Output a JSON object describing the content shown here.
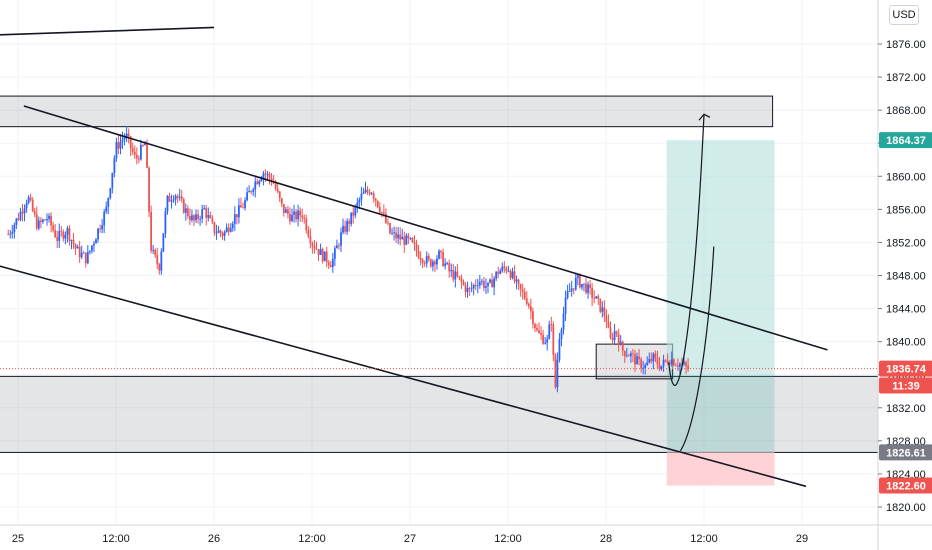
{
  "currency": "USD",
  "chart_data": {
    "type": "candlestick",
    "title": "",
    "xlabel": "",
    "ylabel": "",
    "ylim": [
      1818,
      1878
    ],
    "y_ticks": [
      "1876.00",
      "1872.00",
      "1868.00",
      "1864.00",
      "1860.00",
      "1856.00",
      "1852.00",
      "1848.00",
      "1844.00",
      "1840.00",
      "1836.00",
      "1832.00",
      "1828.00",
      "1824.00",
      "1820.00"
    ],
    "x_ticks": [
      {
        "label": "25",
        "t": 0
      },
      {
        "label": "12:00",
        "t": 0.5
      },
      {
        "label": "26",
        "t": 1
      },
      {
        "label": "12:00",
        "t": 1.5
      },
      {
        "label": "27",
        "t": 2
      },
      {
        "label": "12:00",
        "t": 2.5
      },
      {
        "label": "28",
        "t": 3
      },
      {
        "label": "12:00",
        "t": 3.5
      },
      {
        "label": "29",
        "t": 4
      }
    ],
    "price_path": [
      [
        -0.05,
        1853.0
      ],
      [
        0.0,
        1855.0
      ],
      [
        0.05,
        1857.5
      ],
      [
        0.1,
        1854.0
      ],
      [
        0.15,
        1855.0
      ],
      [
        0.2,
        1852.5
      ],
      [
        0.25,
        1853.5
      ],
      [
        0.3,
        1851.0
      ],
      [
        0.35,
        1850.0
      ],
      [
        0.4,
        1853.0
      ],
      [
        0.45,
        1856.0
      ],
      [
        0.5,
        1863.5
      ],
      [
        0.55,
        1865.0
      ],
      [
        0.6,
        1862.0
      ],
      [
        0.65,
        1864.0
      ],
      [
        0.68,
        1851.0
      ],
      [
        0.72,
        1849.0
      ],
      [
        0.76,
        1857.0
      ],
      [
        0.8,
        1858.0
      ],
      [
        0.85,
        1856.0
      ],
      [
        0.9,
        1854.5
      ],
      [
        0.95,
        1856.0
      ],
      [
        1.0,
        1853.5
      ],
      [
        1.05,
        1853.0
      ],
      [
        1.1,
        1855.0
      ],
      [
        1.15,
        1856.5
      ],
      [
        1.2,
        1859.0
      ],
      [
        1.25,
        1860.5
      ],
      [
        1.3,
        1859.5
      ],
      [
        1.35,
        1856.0
      ],
      [
        1.4,
        1855.0
      ],
      [
        1.45,
        1855.5
      ],
      [
        1.5,
        1852.0
      ],
      [
        1.55,
        1850.5
      ],
      [
        1.6,
        1849.5
      ],
      [
        1.65,
        1853.0
      ],
      [
        1.7,
        1855.0
      ],
      [
        1.75,
        1857.5
      ],
      [
        1.8,
        1858.5
      ],
      [
        1.85,
        1856.0
      ],
      [
        1.9,
        1853.0
      ],
      [
        1.95,
        1852.5
      ],
      [
        2.0,
        1852.0
      ],
      [
        2.05,
        1850.5
      ],
      [
        2.1,
        1849.5
      ],
      [
        2.15,
        1850.5
      ],
      [
        2.2,
        1848.5
      ],
      [
        2.25,
        1847.5
      ],
      [
        2.3,
        1846.0
      ],
      [
        2.35,
        1847.5
      ],
      [
        2.4,
        1846.5
      ],
      [
        2.45,
        1848.5
      ],
      [
        2.5,
        1849.0
      ],
      [
        2.55,
        1846.5
      ],
      [
        2.6,
        1845.0
      ],
      [
        2.65,
        1841.0
      ],
      [
        2.7,
        1840.0
      ],
      [
        2.72,
        1843.0
      ],
      [
        2.74,
        1834.0
      ],
      [
        2.76,
        1840.5
      ],
      [
        2.8,
        1845.5
      ],
      [
        2.85,
        1847.5
      ],
      [
        2.9,
        1846.5
      ],
      [
        2.95,
        1845.0
      ],
      [
        3.0,
        1843.0
      ],
      [
        3.02,
        1840.0
      ],
      [
        3.05,
        1841.5
      ],
      [
        3.08,
        1839.0
      ],
      [
        3.12,
        1838.5
      ],
      [
        3.16,
        1837.5
      ],
      [
        3.2,
        1837.0
      ],
      [
        3.24,
        1838.0
      ],
      [
        3.28,
        1837.0
      ],
      [
        3.32,
        1838.0
      ],
      [
        3.36,
        1837.5
      ],
      [
        3.4,
        1837.0
      ],
      [
        3.42,
        1836.7
      ]
    ],
    "zones": [
      {
        "name": "resistance-zone",
        "t0": -0.6,
        "t1": 3.85,
        "y0": 1866.0,
        "y1": 1869.7
      },
      {
        "name": "support-zone",
        "t0": -0.6,
        "t1": 4.5,
        "y0": 1826.6,
        "y1": 1835.8
      },
      {
        "name": "consolidation-box",
        "t0": 2.95,
        "t1": 3.34,
        "y0": 1835.5,
        "y1": 1839.7
      }
    ],
    "channel": {
      "upper": [
        [
          0.03,
          1868.5
        ],
        [
          4.13,
          1839.0
        ]
      ],
      "lower": [
        [
          -0.15,
          1849.5
        ],
        [
          4.02,
          1822.5
        ]
      ]
    },
    "trend_line": [
      [
        -0.6,
        1876.7
      ],
      [
        1.0,
        1878.0
      ]
    ],
    "projection": {
      "entry": 1836.74,
      "take_profit": 1864.37,
      "stop_loss": 1822.6,
      "t0": 3.31,
      "t1": 3.86,
      "target_zone_bottom": 1826.61
    },
    "paths": [
      {
        "name": "bullish-target-path",
        "points": [
          [
            3.32,
            1837.5
          ],
          [
            3.36,
            1828.5
          ],
          [
            3.45,
            1842.0
          ],
          [
            3.5,
            1867.5
          ]
        ]
      },
      {
        "name": "alternative-path",
        "points": [
          [
            3.38,
            1826.8
          ],
          [
            3.45,
            1829.5
          ],
          [
            3.52,
            1839.0
          ],
          [
            3.55,
            1851.5
          ]
        ]
      }
    ],
    "price_tags": [
      {
        "label": "1864.37",
        "value": 1864.37,
        "color": "#26a69a"
      },
      {
        "label": "1836.74",
        "value": 1836.74,
        "color": "#ef5350"
      },
      {
        "label": "11:39",
        "value": 1834.7,
        "color": "#ef5350"
      },
      {
        "label": "1826.61",
        "value": 1826.61,
        "color": "#787b86"
      },
      {
        "label": "1822.60",
        "value": 1822.6,
        "color": "#ef5350"
      }
    ],
    "colors": {
      "up": "#2962ff",
      "down": "#ef5350",
      "grid": "#f0f3fa",
      "target": "#b2dfdb",
      "stop": "#ffcdd2"
    },
    "grid": true
  }
}
